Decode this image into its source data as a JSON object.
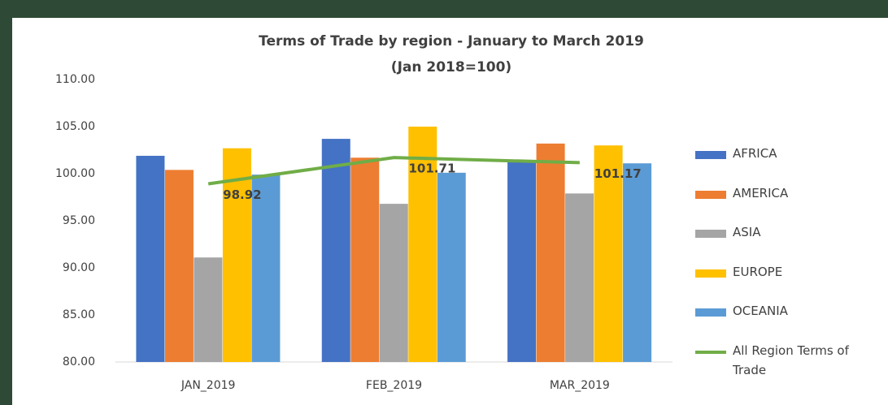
{
  "chart_data": {
    "type": "bar",
    "title": "Terms of Trade by region - January to March 2019",
    "subtitle": "(Jan 2018=100)",
    "categories": [
      "JAN_2019",
      "FEB_2019",
      "MAR_2019"
    ],
    "series": [
      {
        "name": "AFRICA",
        "color": "#4472c4",
        "values": [
          101.9,
          103.7,
          101.4
        ]
      },
      {
        "name": "AMERICA",
        "color": "#ed7d31",
        "values": [
          100.4,
          101.7,
          103.2
        ]
      },
      {
        "name": "ASIA",
        "color": "#a5a5a5",
        "values": [
          91.1,
          96.8,
          97.9
        ]
      },
      {
        "name": "EUROPE",
        "color": "#ffc000",
        "values": [
          102.7,
          105.0,
          103.0
        ]
      },
      {
        "name": "OCEANIA",
        "color": "#5b9bd5",
        "values": [
          99.9,
          100.1,
          101.1
        ]
      },
      {
        "name": "All Region Terms of Trade",
        "type": "line",
        "color": "#70ad47",
        "values": [
          98.92,
          101.71,
          101.17
        ]
      }
    ],
    "ylim": [
      80,
      110
    ],
    "yticks": [
      {
        "value": 80,
        "label": "80.00"
      },
      {
        "value": 85,
        "label": "85.00"
      },
      {
        "value": 90,
        "label": "90.00"
      },
      {
        "value": 95,
        "label": "95.00"
      },
      {
        "value": 100,
        "label": "100.00"
      },
      {
        "value": 105,
        "label": "105.00"
      },
      {
        "value": 110,
        "label": "110.00"
      }
    ],
    "grid": false,
    "legend": "right"
  }
}
